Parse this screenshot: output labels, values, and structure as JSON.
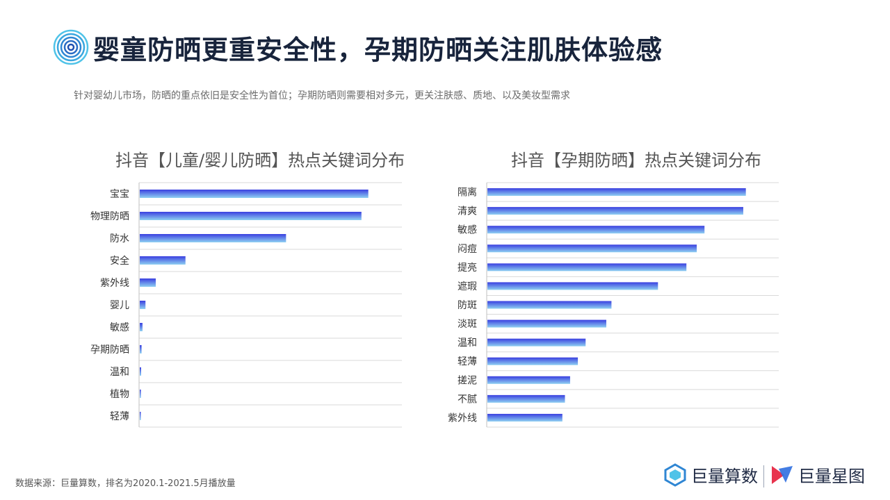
{
  "header": {
    "title": "婴童防晒更重安全性，孕期防晒关注肌肤体验感",
    "subtitle": "针对婴幼儿市场，防晒的重点依旧是安全性为首位；孕期防晒则需要相对多元，更关注肤感、质地、以及美妆型需求"
  },
  "chart_data": [
    {
      "type": "bar",
      "orientation": "horizontal",
      "title": "抖音【儿童/婴儿防晒】热点关键词分布",
      "categories": [
        "宝宝",
        "物理防晒",
        "防水",
        "安全",
        "紫外线",
        "婴儿",
        "敏感",
        "孕期防晒",
        "温和",
        "植物",
        "轻薄"
      ],
      "values": [
        100,
        97,
        64,
        20,
        7,
        2.5,
        1.2,
        0.8,
        0.6,
        0.5,
        0.4
      ],
      "grid": true,
      "legend": "none",
      "xlim": [
        0,
        115
      ],
      "colors": [
        "#3a3fe0",
        "#8fd0f2"
      ]
    },
    {
      "type": "bar",
      "orientation": "horizontal",
      "title": "抖音【孕期防晒】热点关键词分布",
      "categories": [
        "隔离",
        "清爽",
        "敏感",
        "闷痘",
        "提亮",
        "遮瑕",
        "防斑",
        "淡斑",
        "温和",
        "轻薄",
        "搓泥",
        "不腻",
        "紫外线"
      ],
      "values": [
        100,
        99,
        84,
        81,
        77,
        66,
        48,
        46,
        38,
        35,
        32,
        30,
        29
      ],
      "grid": true,
      "legend": "none",
      "xlim": [
        0,
        113
      ],
      "colors": [
        "#3a3fe0",
        "#8fd0f2"
      ]
    }
  ],
  "footer": {
    "source": "数据来源：巨量算数，排名为2020.1-2021.5月播放量",
    "brand1": "巨量算数",
    "brand2": "巨量星图"
  },
  "icons": {
    "title_icon": "concentric-circles-icon",
    "brand1_icon": "juliang-suanshu-logo-icon",
    "brand2_icon": "juliang-xingtu-logo-icon"
  }
}
